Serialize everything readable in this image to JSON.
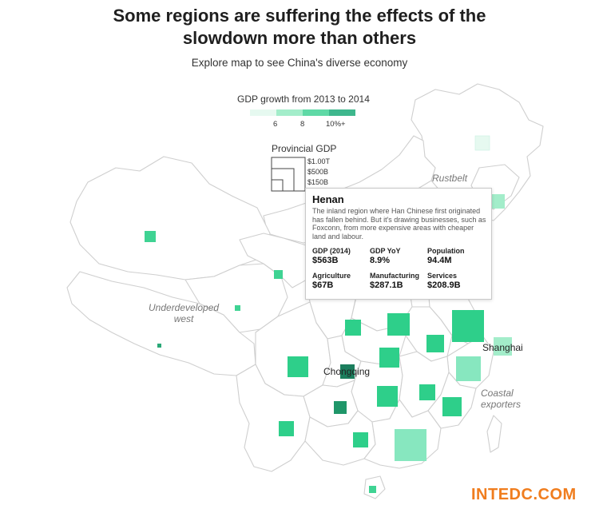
{
  "header": {
    "title_line1": "Some regions are suffering the effects of the",
    "title_line2": "slowdown more than others",
    "subtitle": "Explore map to see China's diverse economy"
  },
  "legend": {
    "color_title": "GDP growth from 2013 to 2014",
    "colors": [
      "#e6f9f0",
      "#a3edca",
      "#5fd9a6",
      "#3eb78d"
    ],
    "ticks": [
      "6",
      "8",
      "10%+"
    ],
    "size_title": "Provincial GDP",
    "sizes": [
      "$1.00T",
      "$500B",
      "$150B"
    ]
  },
  "map": {
    "region_labels": {
      "rustbelt": "Rustbelt",
      "west_line1": "Underdeveloped",
      "west_line2": "west",
      "coastal_line1": "Coastal",
      "coastal_line2": "exporters"
    },
    "city_labels": {
      "shanghai": "Shanghai",
      "chongqing": "Chongqing"
    }
  },
  "tooltip": {
    "title": "Henan",
    "description": "The inland region where Han Chinese first originated has fallen behind. But it's drawing businesses, such as Foxconn, from more expensive areas with cheaper land and labour.",
    "stats": [
      {
        "label": "GDP (2014)",
        "value": "$563B"
      },
      {
        "label": "GDP YoY",
        "value": "8.9%"
      },
      {
        "label": "Population",
        "value": "94.4M"
      },
      {
        "label": "Agriculture",
        "value": "$67B"
      },
      {
        "label": "Manufacturing",
        "value": "$287.1B"
      },
      {
        "label": "Services",
        "value": "$208.9B"
      }
    ]
  },
  "watermark": "INTEDC.COM"
}
